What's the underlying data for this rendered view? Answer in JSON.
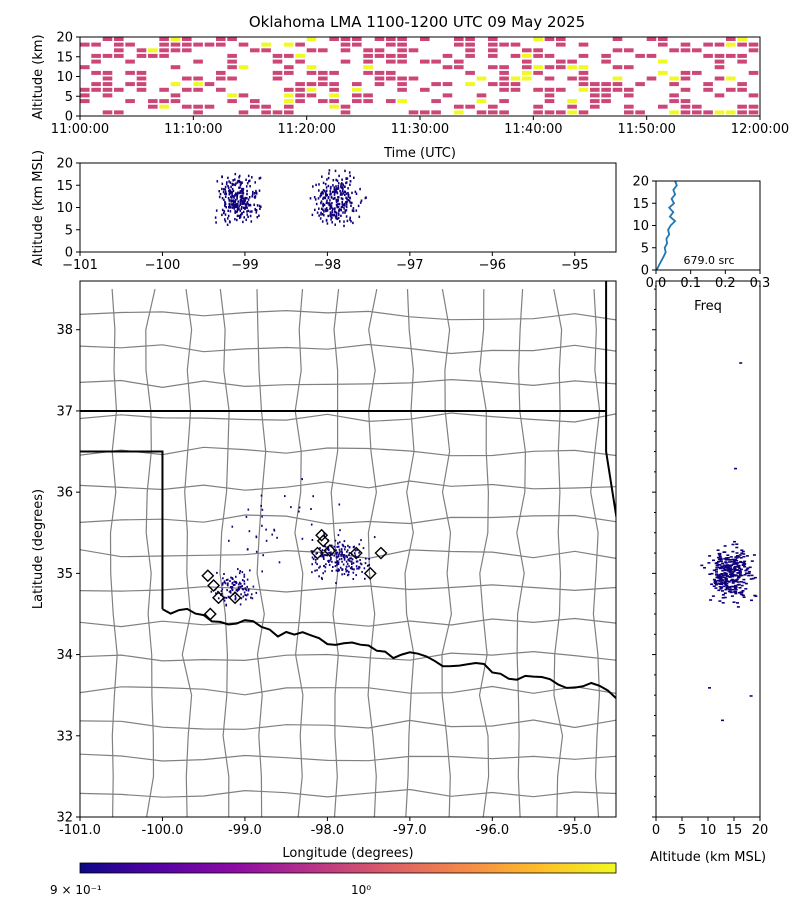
{
  "title": "Oklahoma LMA 1100-1200 UTC 09 May 2025",
  "colors": {
    "source_point": "#10007a",
    "time_hist_low": "#cc4778",
    "time_hist_high": "#f0f921",
    "profile_line": "#1f77b4",
    "state_border": "#000000",
    "county_border": "#808080",
    "colorbar": [
      "#0d0887",
      "#5302a3",
      "#8b0aa5",
      "#b83289",
      "#db5c68",
      "#f48849",
      "#febd2a",
      "#f0f921"
    ]
  },
  "icons": {
    "station_marker": "diamond-outline"
  },
  "chart_data": [
    {
      "id": "time_height",
      "type": "heatmap",
      "ylabel": "Altitude (km)",
      "xlabel": "Time (UTC)",
      "xticks": [
        "11:00:00",
        "11:10:00",
        "11:20:00",
        "11:30:00",
        "11:40:00",
        "11:50:00",
        "12:00:00"
      ],
      "yticks": [
        "0",
        "5",
        "10",
        "15",
        "20"
      ],
      "ylim": [
        0,
        20
      ],
      "note_cells": "time-altitude bins colored by source count (low magenta, high yellow)"
    },
    {
      "id": "lon_alt",
      "type": "scatter",
      "ylabel": "Altitude (km MSL)",
      "xticks": [
        "−101",
        "−100",
        "−99",
        "−98",
        "−97",
        "−96",
        "−95"
      ],
      "yticks": [
        "0",
        "5",
        "10",
        "15",
        "20"
      ],
      "xlim": [
        -101,
        -94.5
      ],
      "ylim": [
        0,
        20
      ],
      "clusters": [
        {
          "lon": -99.1,
          "alt": 12,
          "spread_lon": 0.35,
          "spread_alt": 8
        },
        {
          "lon": -97.9,
          "alt": 12,
          "spread_lon": 0.4,
          "spread_alt": 8
        }
      ]
    },
    {
      "id": "alt_profile",
      "type": "line",
      "xlabel": "Freq",
      "xticks": [
        "0.0",
        "0.1",
        "0.2",
        "0.3"
      ],
      "yticks": [
        "0",
        "5",
        "10",
        "15",
        "20"
      ],
      "xlim": [
        0,
        0.3
      ],
      "ylim": [
        0,
        20
      ],
      "annotation": "679.0 src",
      "alt": [
        0,
        1,
        2,
        3,
        4,
        5,
        6,
        7,
        8,
        9,
        10,
        11,
        12,
        13,
        14,
        15,
        16,
        17,
        18,
        19,
        20
      ],
      "freq": [
        0.002,
        0.008,
        0.015,
        0.022,
        0.028,
        0.025,
        0.032,
        0.03,
        0.038,
        0.035,
        0.042,
        0.055,
        0.04,
        0.05,
        0.038,
        0.052,
        0.045,
        0.055,
        0.05,
        0.06,
        0.055
      ]
    },
    {
      "id": "plan_view",
      "type": "scatter",
      "xlabel": "Longitude (degrees)",
      "ylabel": "Latitude (degrees)",
      "xticks": [
        "-101.0",
        "-100.0",
        "-99.0",
        "-98.0",
        "-97.0",
        "-96.0",
        "-95.0"
      ],
      "yticks": [
        "32",
        "33",
        "34",
        "35",
        "36",
        "37",
        "38"
      ],
      "xlim": [
        -101,
        -94.5
      ],
      "ylim": [
        32,
        38.6
      ],
      "stations": [
        {
          "lon": -99.45,
          "lat": 34.97
        },
        {
          "lon": -99.38,
          "lat": 34.85
        },
        {
          "lon": -99.32,
          "lat": 34.7
        },
        {
          "lon": -99.12,
          "lat": 34.7
        },
        {
          "lon": -99.42,
          "lat": 34.5
        },
        {
          "lon": -98.05,
          "lat": 35.4
        },
        {
          "lon": -97.97,
          "lat": 35.28
        },
        {
          "lon": -98.12,
          "lat": 35.25
        },
        {
          "lon": -97.65,
          "lat": 35.25
        },
        {
          "lon": -97.48,
          "lat": 35.0
        },
        {
          "lon": -97.35,
          "lat": 35.25
        },
        {
          "lon": -98.07,
          "lat": 35.47
        }
      ]
    },
    {
      "id": "alt_lat",
      "type": "scatter",
      "xlabel": "Altitude (km MSL)",
      "xticks": [
        "0",
        "5",
        "10",
        "15",
        "20"
      ],
      "xlim": [
        0,
        20
      ],
      "ylim": [
        32,
        38.6
      ]
    },
    {
      "id": "colorbar",
      "type": "colorbar",
      "labels": [
        "9 × 10⁻¹",
        "10⁰"
      ]
    }
  ]
}
